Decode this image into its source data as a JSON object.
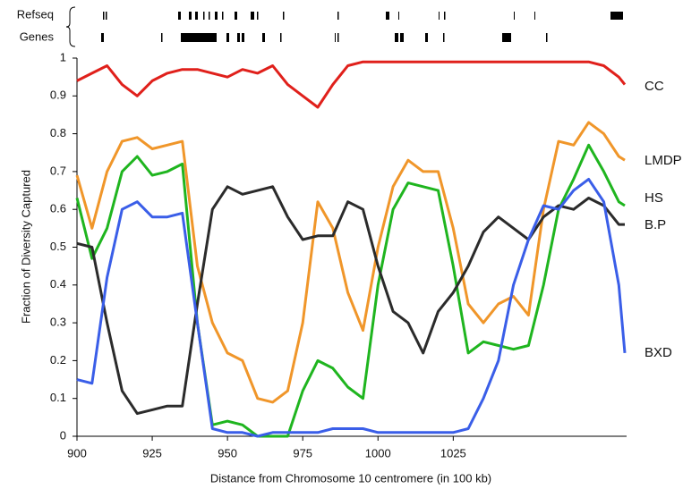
{
  "chart_data": {
    "type": "line",
    "track_labels": [
      "Refseq",
      "Genes"
    ],
    "xlabel": "Distance from Chromosome 10 centromere (in 100 kb)",
    "ylabel": "Fraction of Diversity Captured",
    "x": [
      900,
      905,
      910,
      915,
      920,
      925,
      930,
      935,
      940,
      945,
      950,
      955,
      960,
      965,
      970,
      975,
      980,
      985,
      990,
      995,
      1000,
      1005,
      1010,
      1015,
      1020,
      1025,
      1030,
      1035,
      1040,
      1045,
      1050,
      1055,
      1060,
      1065,
      1070,
      1075,
      1080,
      1082
    ],
    "xlim": [
      900,
      1082
    ],
    "xticks": [
      900,
      925,
      950,
      975,
      1000,
      1025
    ],
    "ylim": [
      0,
      1
    ],
    "yticks": [
      0,
      0.1,
      0.2,
      0.3,
      0.4,
      0.5,
      0.6,
      0.7,
      0.8,
      0.9,
      1
    ],
    "grid": false,
    "series": [
      {
        "name": "CC",
        "color": "#e0201b",
        "values": [
          0.94,
          0.96,
          0.98,
          0.93,
          0.9,
          0.94,
          0.96,
          0.97,
          0.97,
          0.96,
          0.95,
          0.97,
          0.96,
          0.98,
          0.93,
          0.9,
          0.87,
          0.93,
          0.98,
          0.99,
          0.99,
          0.99,
          0.99,
          0.99,
          0.99,
          0.99,
          0.99,
          0.99,
          0.99,
          0.99,
          0.99,
          0.99,
          0.99,
          0.99,
          0.99,
          0.98,
          0.95,
          0.93
        ]
      },
      {
        "name": "LMDP",
        "color": "#f0962a",
        "values": [
          0.69,
          0.55,
          0.7,
          0.78,
          0.79,
          0.76,
          0.77,
          0.78,
          0.45,
          0.3,
          0.22,
          0.2,
          0.1,
          0.09,
          0.12,
          0.3,
          0.62,
          0.55,
          0.38,
          0.28,
          0.5,
          0.66,
          0.73,
          0.7,
          0.7,
          0.55,
          0.35,
          0.3,
          0.35,
          0.37,
          0.32,
          0.6,
          0.78,
          0.77,
          0.83,
          0.8,
          0.74,
          0.73
        ]
      },
      {
        "name": "HS",
        "color": "#1fb51f",
        "values": [
          0.63,
          0.47,
          0.55,
          0.7,
          0.74,
          0.69,
          0.7,
          0.72,
          0.3,
          0.03,
          0.04,
          0.03,
          0,
          0,
          0,
          0.12,
          0.2,
          0.18,
          0.13,
          0.1,
          0.4,
          0.6,
          0.67,
          0.66,
          0.65,
          0.45,
          0.22,
          0.25,
          0.24,
          0.23,
          0.24,
          0.4,
          0.6,
          0.68,
          0.77,
          0.7,
          0.62,
          0.61
        ]
      },
      {
        "name": "B.P",
        "color": "#2b2b2b",
        "values": [
          0.51,
          0.5,
          0.3,
          0.12,
          0.06,
          0.07,
          0.08,
          0.08,
          0.35,
          0.6,
          0.66,
          0.64,
          0.65,
          0.66,
          0.58,
          0.52,
          0.53,
          0.53,
          0.62,
          0.6,
          0.45,
          0.33,
          0.3,
          0.22,
          0.33,
          0.38,
          0.45,
          0.54,
          0.58,
          0.55,
          0.52,
          0.58,
          0.61,
          0.6,
          0.63,
          0.61,
          0.56,
          0.56
        ]
      },
      {
        "name": "BXD",
        "color": "#3a5ee8",
        "values": [
          0.15,
          0.14,
          0.42,
          0.6,
          0.62,
          0.58,
          0.58,
          0.59,
          0.3,
          0.02,
          0.01,
          0.01,
          0,
          0.01,
          0.01,
          0.01,
          0.01,
          0.02,
          0.02,
          0.02,
          0.01,
          0.01,
          0.01,
          0.01,
          0.01,
          0.01,
          0.02,
          0.1,
          0.2,
          0.4,
          0.52,
          0.61,
          0.6,
          0.65,
          0.68,
          0.62,
          0.4,
          0.22
        ]
      }
    ]
  }
}
